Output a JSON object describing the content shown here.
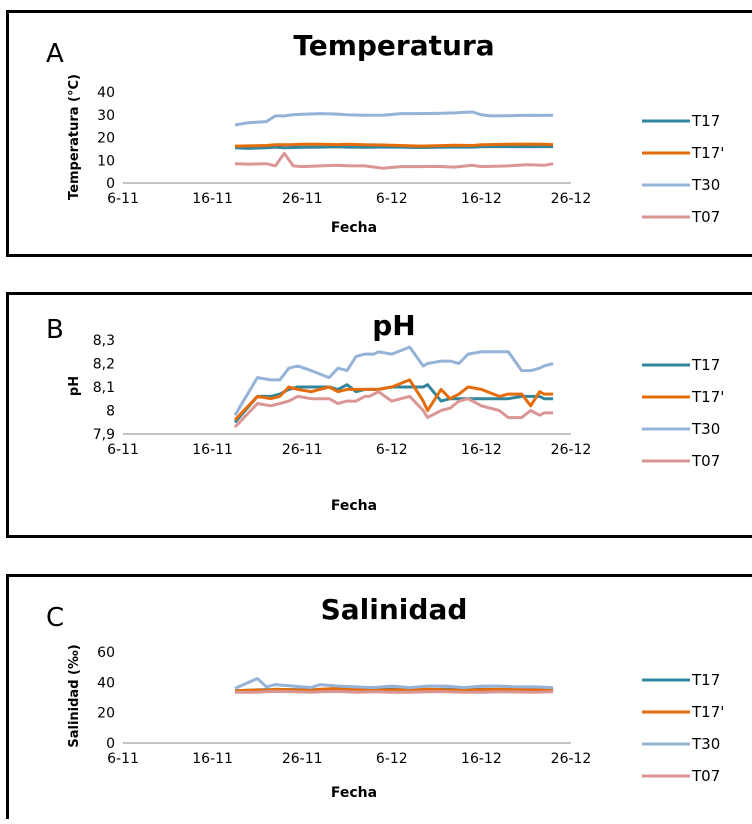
{
  "colors": {
    "T17": "#31859C",
    "T17p": "#E46C0A",
    "T30": "#95B3D7",
    "T07": "#D99694"
  },
  "chart_data": [
    {
      "type": "line",
      "panel_letter": "A",
      "title": "Temperatura",
      "xlabel": "Fecha",
      "ylabel": "Temperatura (°C)",
      "x_ticks": [
        "6-11",
        "16-11",
        "26-11",
        "6-12",
        "16-12",
        "26-12"
      ],
      "x_tick_values": [
        0,
        10,
        20,
        30,
        40,
        50
      ],
      "xlim": [
        0,
        50
      ],
      "ylim": [
        0,
        40
      ],
      "y_ticks": [
        "0",
        "10",
        "20",
        "30",
        "40"
      ],
      "y_tick_values": [
        0,
        10,
        20,
        30,
        40
      ],
      "grid": false,
      "legend_position": "right",
      "x": [
        12.5,
        14,
        16,
        17,
        18,
        19,
        20,
        22,
        24,
        25,
        27,
        29,
        31,
        33,
        35,
        37,
        39,
        40,
        41,
        43,
        45,
        47,
        48
      ],
      "series": [
        {
          "name": "T17",
          "color_key": "T17",
          "values": [
            15.5,
            15.2,
            15.5,
            15.8,
            15.5,
            15.6,
            15.7,
            15.8,
            15.9,
            15.8,
            15.7,
            15.8,
            15.8,
            15.6,
            15.7,
            15.8,
            15.8,
            15.9,
            16.0,
            16.0,
            15.9,
            16.0,
            16.0
          ]
        },
        {
          "name": "T17'",
          "color_key": "T17p",
          "values": [
            16.2,
            16.3,
            16.5,
            16.8,
            16.8,
            16.9,
            17.0,
            17.0,
            16.9,
            17.0,
            16.8,
            16.7,
            16.5,
            16.2,
            16.4,
            16.6,
            16.5,
            16.8,
            16.9,
            17.0,
            17.1,
            17.0,
            16.9
          ]
        },
        {
          "name": "T30",
          "color_key": "T30",
          "values": [
            25.5,
            26.5,
            27.0,
            29.5,
            29.5,
            30.0,
            30.2,
            30.5,
            30.3,
            30.0,
            29.8,
            29.8,
            30.5,
            30.5,
            30.6,
            30.8,
            31.2,
            30.0,
            29.5,
            29.6,
            29.8,
            29.7,
            29.8
          ]
        },
        {
          "name": "T07",
          "color_key": "T07",
          "values": [
            8.5,
            8.3,
            8.5,
            7.5,
            13.0,
            7.5,
            7.2,
            7.5,
            7.8,
            7.6,
            7.5,
            6.5,
            7.2,
            7.2,
            7.3,
            7.0,
            7.8,
            7.2,
            7.3,
            7.5,
            8.0,
            7.8,
            8.5
          ]
        }
      ]
    },
    {
      "type": "line",
      "panel_letter": "B",
      "title": "pH",
      "xlabel": "Fecha",
      "ylabel": "pH",
      "x_ticks": [
        "6-11",
        "16-11",
        "26-11",
        "6-12",
        "16-12",
        "26-12"
      ],
      "x_tick_values": [
        0,
        10,
        20,
        30,
        40,
        50
      ],
      "xlim": [
        0,
        50
      ],
      "ylim": [
        7.9,
        8.3
      ],
      "y_ticks": [
        "7,9",
        "8",
        "8,1",
        "8,2",
        "8,3"
      ],
      "y_tick_values": [
        7.9,
        8.0,
        8.1,
        8.2,
        8.3
      ],
      "grid": false,
      "legend_position": "right",
      "x": [
        12.5,
        15,
        16.5,
        17.5,
        18.5,
        19.5,
        21,
        23,
        24,
        25,
        26,
        27,
        27.5,
        28,
        28.5,
        30,
        32,
        33.5,
        34,
        35.5,
        36.5,
        37.5,
        38.5,
        40,
        42,
        43,
        44.5,
        45.5,
        46.5,
        47,
        48
      ],
      "series": [
        {
          "name": "T17",
          "color_key": "T17",
          "values": [
            7.95,
            8.06,
            8.06,
            8.07,
            8.09,
            8.1,
            8.1,
            8.1,
            8.09,
            8.11,
            8.08,
            8.09,
            8.09,
            8.09,
            8.09,
            8.1,
            8.1,
            8.1,
            8.11,
            8.04,
            8.05,
            8.05,
            8.05,
            8.05,
            8.05,
            8.05,
            8.06,
            8.06,
            8.06,
            8.05,
            8.05
          ]
        },
        {
          "name": "T17'",
          "color_key": "T17p",
          "values": [
            7.96,
            8.06,
            8.05,
            8.06,
            8.1,
            8.09,
            8.08,
            8.1,
            8.08,
            8.09,
            8.09,
            8.09,
            8.09,
            8.09,
            8.09,
            8.1,
            8.13,
            8.04,
            8.0,
            8.09,
            8.05,
            8.07,
            8.1,
            8.09,
            8.06,
            8.07,
            8.07,
            8.02,
            8.08,
            8.07,
            8.07
          ]
        },
        {
          "name": "T30",
          "color_key": "T30",
          "values": [
            7.98,
            8.14,
            8.13,
            8.13,
            8.18,
            8.19,
            8.17,
            8.14,
            8.18,
            8.17,
            8.23,
            8.24,
            8.24,
            8.24,
            8.25,
            8.24,
            8.27,
            8.19,
            8.2,
            8.21,
            8.21,
            8.2,
            8.24,
            8.25,
            8.25,
            8.25,
            8.17,
            8.17,
            8.18,
            8.19,
            8.2
          ]
        },
        {
          "name": "T07",
          "color_key": "T07",
          "values": [
            7.93,
            8.03,
            8.02,
            8.03,
            8.04,
            8.06,
            8.05,
            8.05,
            8.03,
            8.04,
            8.04,
            8.06,
            8.06,
            8.07,
            8.08,
            8.04,
            8.06,
            8.0,
            7.97,
            8.0,
            8.01,
            8.04,
            8.05,
            8.02,
            8.0,
            7.97,
            7.97,
            8.0,
            7.98,
            7.99,
            7.99
          ]
        }
      ]
    },
    {
      "type": "line",
      "panel_letter": "C",
      "title": "Salinidad",
      "xlabel": "Fecha",
      "ylabel": "Salinidad (‰)",
      "x_ticks": [
        "6-11",
        "16-11",
        "26-11",
        "6-12",
        "16-12",
        "26-12"
      ],
      "x_tick_values": [
        0,
        10,
        20,
        30,
        40,
        50
      ],
      "xlim": [
        0,
        50
      ],
      "ylim": [
        0,
        60
      ],
      "y_ticks": [
        "0",
        "20",
        "40",
        "60"
      ],
      "y_tick_values": [
        0,
        20,
        40,
        60
      ],
      "grid": false,
      "legend_position": "right",
      "x": [
        12.5,
        15,
        16,
        17,
        19,
        21,
        22,
        24,
        26,
        28,
        30,
        32,
        34,
        36,
        38,
        40,
        42,
        44,
        46,
        48
      ],
      "series": [
        {
          "name": "T17",
          "color_key": "T17",
          "values": [
            34.5,
            35.0,
            35.2,
            35.0,
            35.2,
            35.0,
            35.3,
            35.5,
            35.5,
            35.0,
            35.4,
            35.5,
            35.3,
            35.5,
            35.0,
            35.4,
            35.3,
            35.2,
            35.4,
            35.5
          ]
        },
        {
          "name": "T17'",
          "color_key": "T17p",
          "values": [
            34.5,
            35.0,
            34.8,
            35.5,
            35.0,
            34.8,
            35.5,
            36.0,
            35.5,
            34.8,
            35.0,
            35.5,
            35.5,
            35.0,
            34.8,
            35.2,
            35.5,
            35.5,
            35.0,
            35.5
          ]
        },
        {
          "name": "T30",
          "color_key": "T30",
          "values": [
            36.0,
            42.5,
            37.0,
            38.5,
            37.5,
            36.5,
            38.5,
            37.5,
            37.0,
            36.5,
            37.5,
            36.5,
            37.5,
            37.5,
            36.5,
            37.5,
            37.5,
            37.0,
            37.0,
            36.5
          ]
        },
        {
          "name": "T07",
          "color_key": "T07",
          "values": [
            33.5,
            33.5,
            33.8,
            34.0,
            33.8,
            33.5,
            33.8,
            34.0,
            33.5,
            33.8,
            33.5,
            33.5,
            33.8,
            33.8,
            33.5,
            33.5,
            33.8,
            33.6,
            33.5,
            33.8
          ]
        }
      ]
    }
  ]
}
